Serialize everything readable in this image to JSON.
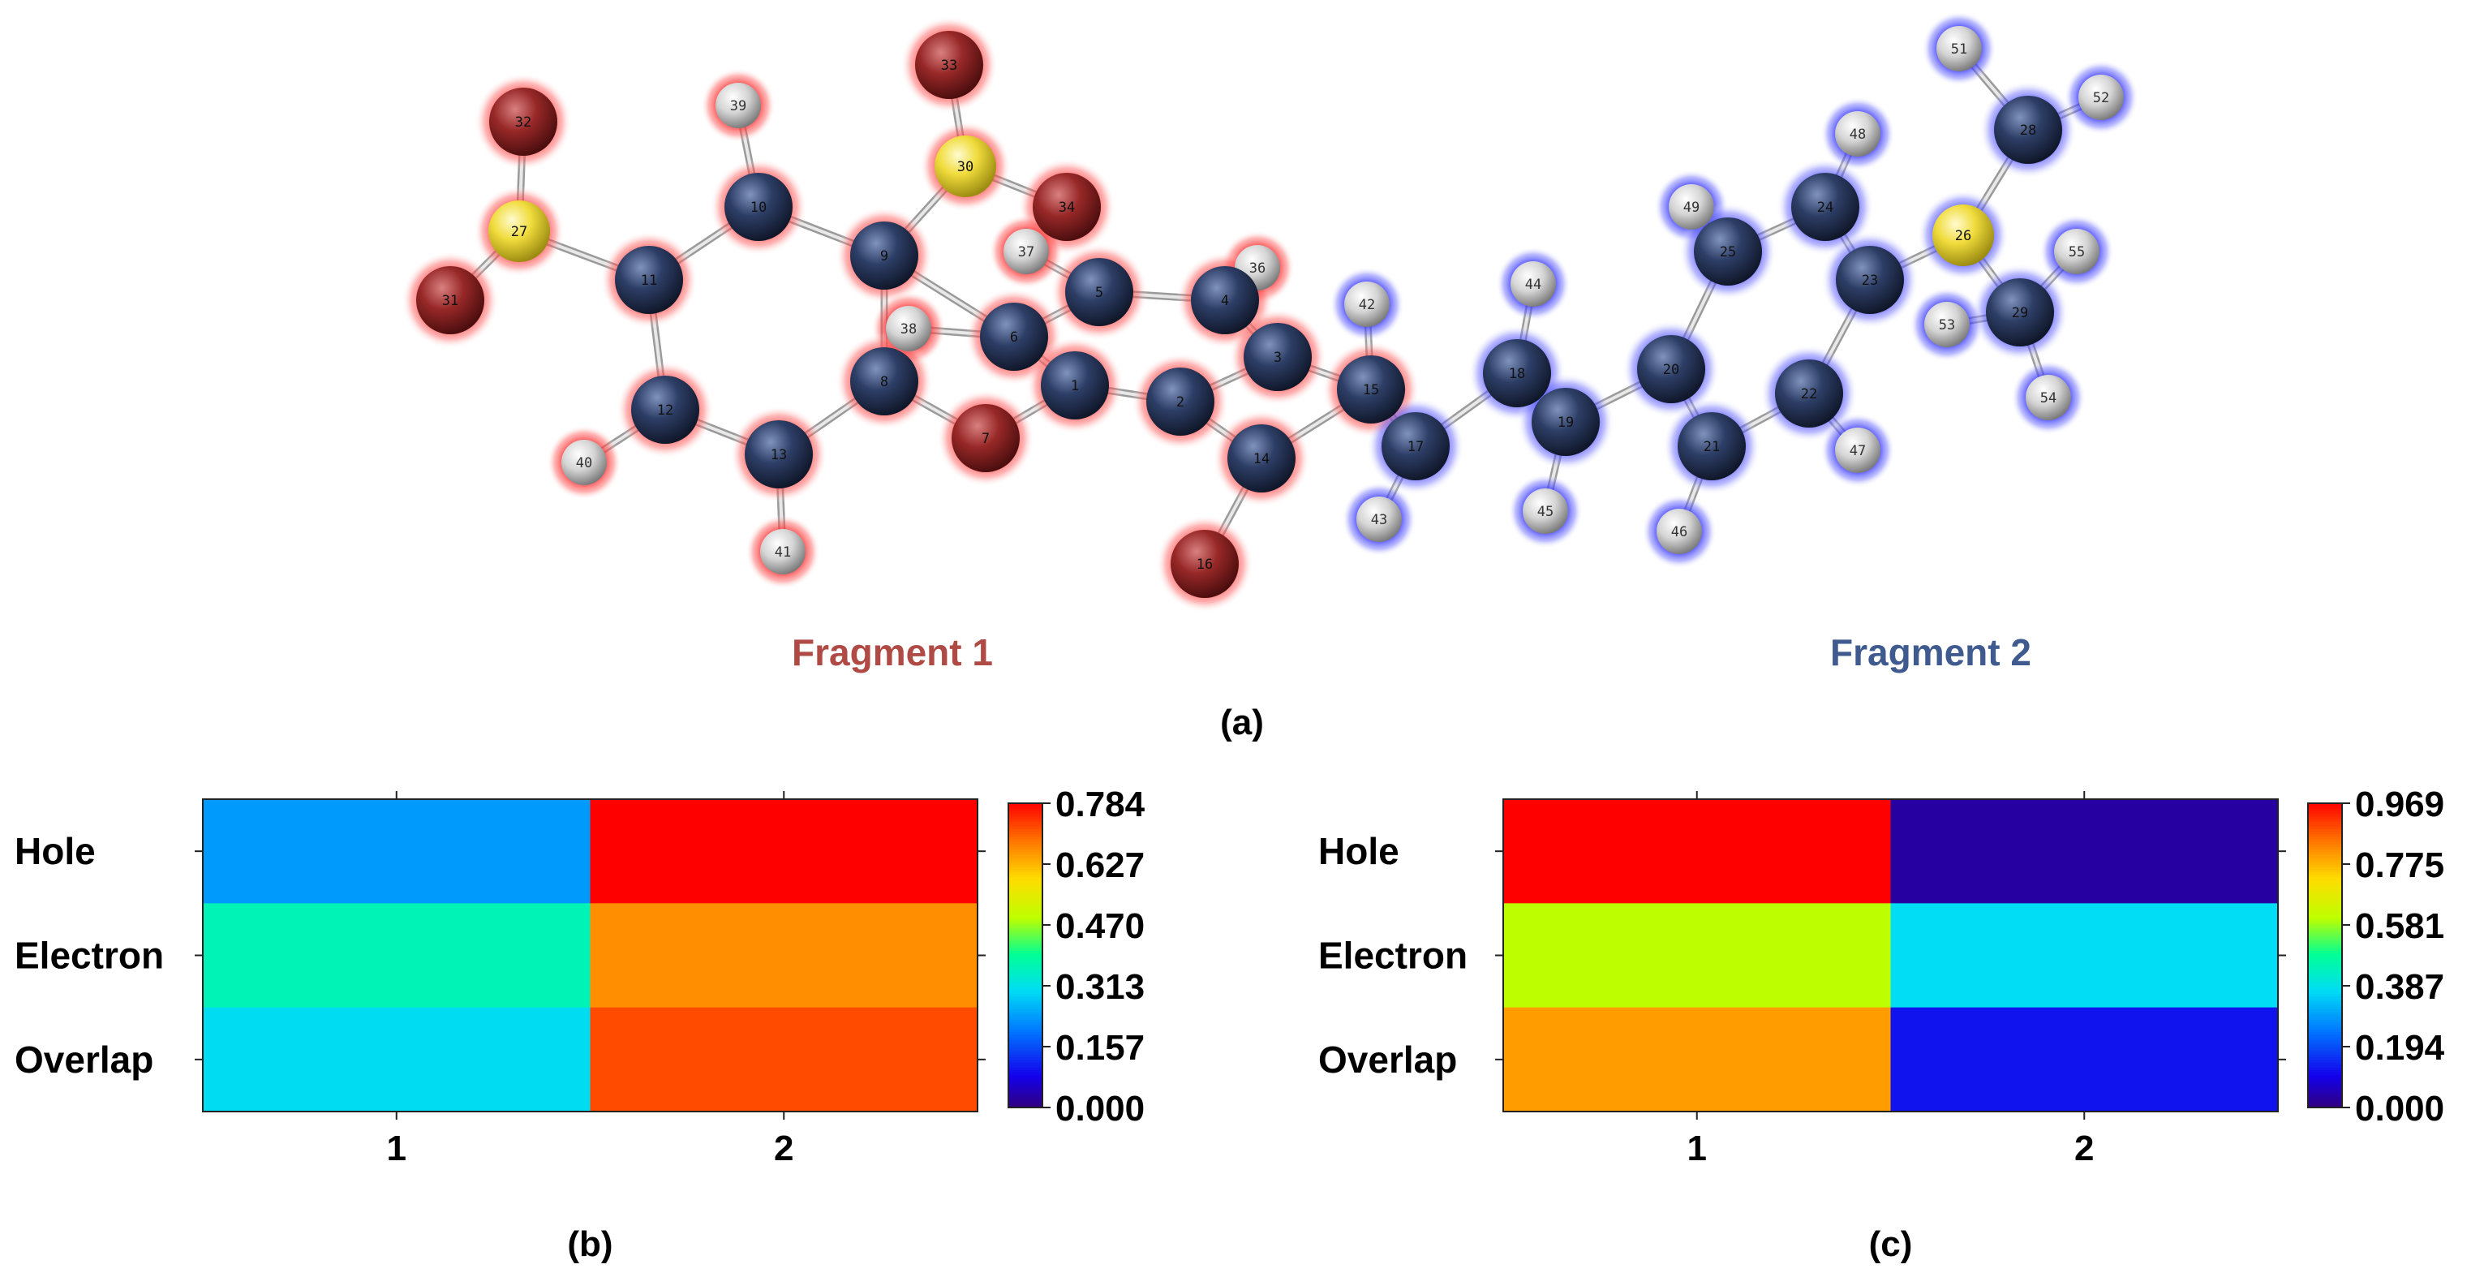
{
  "molecule": {
    "fragment_labels": [
      {
        "text": "Fragment 1",
        "color": "#b04a45"
      },
      {
        "text": "Fragment 2",
        "color": "#3f5a8e"
      }
    ],
    "panel_label": "(a)",
    "glow_colors": {
      "fragment1": "#ff2020",
      "fragment2": "#2a2aff"
    },
    "atom_colors": {
      "C": "#23314f",
      "O": "#8e1e1e",
      "S": "#e6d73a",
      "H": "#d8d8d8"
    },
    "atoms": [
      {
        "n": "1",
        "el": "C",
        "frag": 1
      },
      {
        "n": "2",
        "el": "C",
        "frag": 1
      },
      {
        "n": "3",
        "el": "C",
        "frag": 1
      },
      {
        "n": "4",
        "el": "C",
        "frag": 1
      },
      {
        "n": "5",
        "el": "C",
        "frag": 1
      },
      {
        "n": "6",
        "el": "C",
        "frag": 1
      },
      {
        "n": "7",
        "el": "O",
        "frag": 1
      },
      {
        "n": "8",
        "el": "C",
        "frag": 1
      },
      {
        "n": "9",
        "el": "C",
        "frag": 1
      },
      {
        "n": "10",
        "el": "C",
        "frag": 1
      },
      {
        "n": "11",
        "el": "C",
        "frag": 1
      },
      {
        "n": "12",
        "el": "C",
        "frag": 1
      },
      {
        "n": "13",
        "el": "C",
        "frag": 1
      },
      {
        "n": "14",
        "el": "C",
        "frag": 1
      },
      {
        "n": "15",
        "el": "C",
        "frag": 1
      },
      {
        "n": "16",
        "el": "O",
        "frag": 1
      },
      {
        "n": "17",
        "el": "C",
        "frag": 2
      },
      {
        "n": "18",
        "el": "C",
        "frag": 2
      },
      {
        "n": "19",
        "el": "C",
        "frag": 2
      },
      {
        "n": "20",
        "el": "C",
        "frag": 2
      },
      {
        "n": "21",
        "el": "C",
        "frag": 2
      },
      {
        "n": "22",
        "el": "C",
        "frag": 2
      },
      {
        "n": "23",
        "el": "C",
        "frag": 2
      },
      {
        "n": "24",
        "el": "C",
        "frag": 2
      },
      {
        "n": "25",
        "el": "C",
        "frag": 2
      },
      {
        "n": "26",
        "el": "S",
        "frag": 2
      },
      {
        "n": "27",
        "el": "S",
        "frag": 1
      },
      {
        "n": "28",
        "el": "C",
        "frag": 2
      },
      {
        "n": "29",
        "el": "C",
        "frag": 2
      },
      {
        "n": "30",
        "el": "S",
        "frag": 1
      },
      {
        "n": "31",
        "el": "O",
        "frag": 1
      },
      {
        "n": "32",
        "el": "O",
        "frag": 1
      },
      {
        "n": "33",
        "el": "O",
        "frag": 1
      },
      {
        "n": "34",
        "el": "O",
        "frag": 1
      },
      {
        "n": "36",
        "el": "H",
        "frag": 1
      },
      {
        "n": "37",
        "el": "H",
        "frag": 1
      },
      {
        "n": "38",
        "el": "H",
        "frag": 1
      },
      {
        "n": "39",
        "el": "H",
        "frag": 1
      },
      {
        "n": "40",
        "el": "H",
        "frag": 1
      },
      {
        "n": "41",
        "el": "H",
        "frag": 1
      },
      {
        "n": "42",
        "el": "H",
        "frag": 2
      },
      {
        "n": "43",
        "el": "H",
        "frag": 2
      },
      {
        "n": "44",
        "el": "H",
        "frag": 2
      },
      {
        "n": "45",
        "el": "H",
        "frag": 2
      },
      {
        "n": "46",
        "el": "H",
        "frag": 2
      },
      {
        "n": "47",
        "el": "H",
        "frag": 2
      },
      {
        "n": "48",
        "el": "H",
        "frag": 2
      },
      {
        "n": "49",
        "el": "H",
        "frag": 2
      },
      {
        "n": "51",
        "el": "H",
        "frag": 2
      },
      {
        "n": "52",
        "el": "H",
        "frag": 2
      },
      {
        "n": "53",
        "el": "H",
        "frag": 2
      },
      {
        "n": "54",
        "el": "H",
        "frag": 2
      },
      {
        "n": "55",
        "el": "H",
        "frag": 2
      }
    ],
    "bonds": [
      [
        "1",
        "2"
      ],
      [
        "2",
        "3"
      ],
      [
        "3",
        "4"
      ],
      [
        "4",
        "5"
      ],
      [
        "5",
        "6"
      ],
      [
        "6",
        "1"
      ],
      [
        "1",
        "7"
      ],
      [
        "7",
        "8"
      ],
      [
        "8",
        "9"
      ],
      [
        "9",
        "10"
      ],
      [
        "10",
        "11"
      ],
      [
        "11",
        "12"
      ],
      [
        "12",
        "13"
      ],
      [
        "13",
        "8"
      ],
      [
        "6",
        "9"
      ],
      [
        "2",
        "14"
      ],
      [
        "14",
        "16"
      ],
      [
        "14",
        "15"
      ],
      [
        "15",
        "3"
      ],
      [
        "15",
        "17"
      ],
      [
        "17",
        "18"
      ],
      [
        "18",
        "19"
      ],
      [
        "19",
        "20"
      ],
      [
        "20",
        "21"
      ],
      [
        "21",
        "22"
      ],
      [
        "22",
        "23"
      ],
      [
        "23",
        "24"
      ],
      [
        "24",
        "25"
      ],
      [
        "25",
        "20"
      ],
      [
        "23",
        "26"
      ],
      [
        "26",
        "28"
      ],
      [
        "26",
        "29"
      ],
      [
        "11",
        "27"
      ],
      [
        "27",
        "31"
      ],
      [
        "27",
        "32"
      ],
      [
        "9",
        "30"
      ],
      [
        "30",
        "33"
      ],
      [
        "30",
        "34"
      ],
      [
        "4",
        "36"
      ],
      [
        "5",
        "37"
      ],
      [
        "6",
        "38"
      ],
      [
        "10",
        "39"
      ],
      [
        "12",
        "40"
      ],
      [
        "13",
        "41"
      ],
      [
        "15",
        "42"
      ],
      [
        "17",
        "43"
      ],
      [
        "18",
        "44"
      ],
      [
        "19",
        "45"
      ],
      [
        "21",
        "46"
      ],
      [
        "22",
        "47"
      ],
      [
        "24",
        "48"
      ],
      [
        "25",
        "49"
      ],
      [
        "28",
        "51"
      ],
      [
        "28",
        "52"
      ],
      [
        "29",
        "53"
      ],
      [
        "29",
        "54"
      ],
      [
        "29",
        "55"
      ]
    ]
  },
  "chart_data": [
    {
      "type": "heatmap",
      "panel_label": "(b)",
      "rows": [
        "Hole",
        "Electron",
        "Overlap"
      ],
      "columns": [
        "1",
        "2"
      ],
      "values": [
        [
          0.23,
          0.784
        ],
        [
          0.36,
          0.66
        ],
        [
          0.3,
          0.72
        ]
      ],
      "colorbar": {
        "min": 0.0,
        "max": 0.784,
        "tick_labels": [
          "0.784",
          "0.627",
          "0.470",
          "0.313",
          "0.157",
          "0.000"
        ]
      }
    },
    {
      "type": "heatmap",
      "panel_label": "(c)",
      "rows": [
        "Hole",
        "Electron",
        "Overlap"
      ],
      "columns": [
        "1",
        "2"
      ],
      "values": [
        [
          0.969,
          0.03
        ],
        [
          0.6,
          0.37
        ],
        [
          0.8,
          0.12
        ]
      ],
      "colorbar": {
        "min": 0.0,
        "max": 0.969,
        "tick_labels": [
          "0.969",
          "0.775",
          "0.581",
          "0.387",
          "0.194",
          "0.000"
        ]
      }
    }
  ]
}
